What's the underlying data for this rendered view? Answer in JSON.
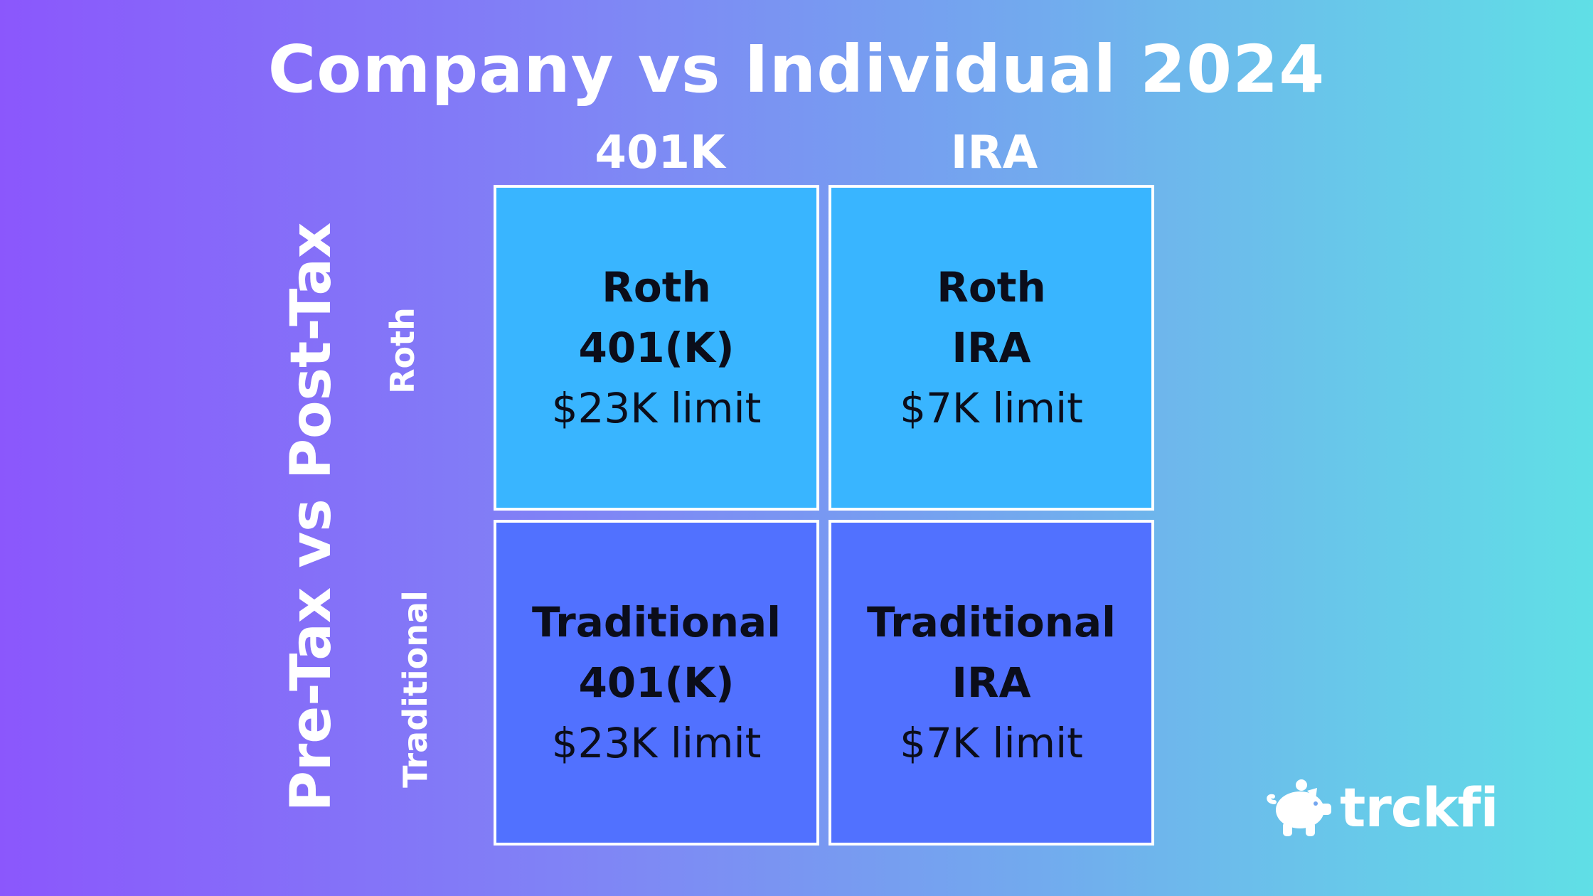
{
  "title": "Company vs Individual 2024",
  "columns": [
    "401K",
    "IRA"
  ],
  "axis_label": "Pre-Tax vs Post-Tax",
  "rows": [
    "Roth",
    "Traditional"
  ],
  "cells": [
    [
      {
        "type": "Roth",
        "account": "401(K)",
        "limit": "$23K limit"
      },
      {
        "type": "Roth",
        "account": "IRA",
        "limit": "$7K limit"
      }
    ],
    [
      {
        "type": "Traditional",
        "account": "401(K)",
        "limit": "$23K limit"
      },
      {
        "type": "Traditional",
        "account": "IRA",
        "limit": "$7K limit"
      }
    ]
  ],
  "colors": {
    "roth_cell": "#39b5ff",
    "traditional_cell": "#5171ff",
    "cell_border": "#ffffff",
    "text_dark": "#0b0d1a",
    "gradient_start": "#8b57fc",
    "gradient_end": "#60dfe6"
  },
  "brand": {
    "icon": "piggy-bank-icon",
    "name": "trckfi"
  }
}
